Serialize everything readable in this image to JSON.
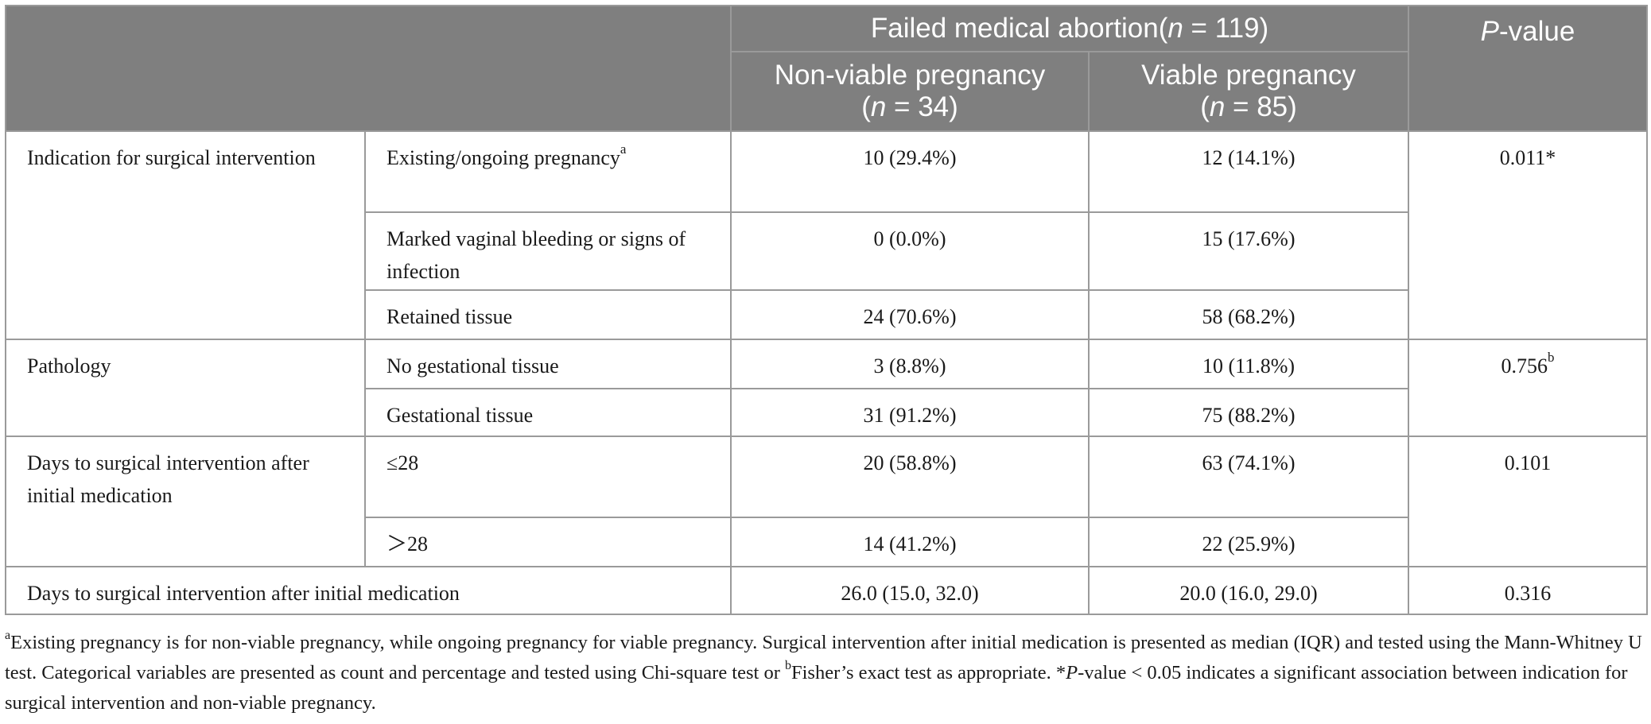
{
  "header": {
    "group_prefix": "Failed medical abortion(",
    "group_n_italic": "n",
    "group_suffix": " = 119)",
    "pvalue_italic": "P",
    "pvalue_suffix": "-value",
    "col1_title": "Non-viable pregnancy",
    "col1_open": "(",
    "col1_n_italic": "n",
    "col1_suffix": " = 34)",
    "col2_title": "Viable pregnancy",
    "col2_open": "(",
    "col2_n_italic": "n",
    "col2_suffix": " = 85)"
  },
  "rows": {
    "indication": {
      "label": "Indication for surgical intervention",
      "sub1": {
        "label": "Existing/ongoing pregnancy",
        "sup": "a",
        "c1": "10 (29.4%)",
        "c2": "12 (14.1%)",
        "p": "0.011*"
      },
      "sub2": {
        "label": "Marked vaginal bleeding or signs of infection",
        "c1": "0 (0.0%)",
        "c2": "15 (17.6%)"
      },
      "sub3": {
        "label": "Retained tissue",
        "c1": "24 (70.6%)",
        "c2": "58 (68.2%)"
      }
    },
    "pathology": {
      "label": "Pathology",
      "sub1": {
        "label": "No gestational tissue",
        "c1": "3 (8.8%)",
        "c2": "10 (11.8%)",
        "p": "0.756",
        "p_sup": "b"
      },
      "sub2": {
        "label": "Gestational tissue",
        "c1": "31 (91.2%)",
        "c2": "75 (88.2%)"
      }
    },
    "days_cat": {
      "label": "Days to surgical intervention after initial medication",
      "sub1": {
        "label": "≤28",
        "c1": "20 (58.8%)",
        "c2": "63 (74.1%)",
        "p": "0.101"
      },
      "sub2": {
        "label": "＞28",
        "c1": "14 (41.2%)",
        "c2": "22 (25.9%)"
      }
    },
    "days_median": {
      "label": "Days to surgical intervention after initial medication",
      "c1": "26.0 (15.0, 32.0)",
      "c2": "20.0 (16.0, 29.0)",
      "p": "0.316"
    }
  },
  "footnote": {
    "a_sup": "a",
    "text1": "Existing pregnancy is for non-viable pregnancy, while ongoing pregnancy for viable pregnancy. Surgical intervention after initial medication is presented as median (IQR) and tested using the Mann-Whitney U test. Categorical variables are presented as count and percentage and tested using Chi-square test or ",
    "b_sup": "b",
    "text2": "Fisher’s exact test as appropriate. *",
    "p_italic": "P",
    "text3": "-value < 0.05 indicates a significant association between indication for surgical intervention and non-viable pregnancy."
  }
}
